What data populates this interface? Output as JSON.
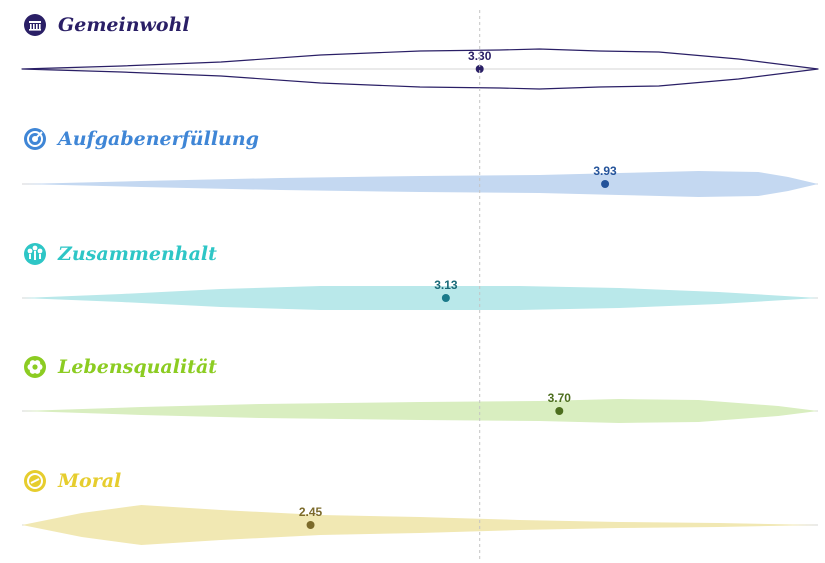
{
  "chart_data": {
    "type": "violin",
    "x_range": [
      1,
      5
    ],
    "reference_x": 3.3,
    "rows": [
      {
        "label": "Gemeinwohl",
        "value": "3.30",
        "x": 3.3,
        "icon": "building-icon",
        "color": "#2a1f66",
        "fill": "none",
        "stroke": "#2a1f66",
        "dot": "#2a1f66",
        "text": "#2a1f66",
        "density": [
          [
            1.0,
            0
          ],
          [
            1.5,
            3
          ],
          [
            2.0,
            7
          ],
          [
            2.5,
            14
          ],
          [
            3.0,
            18
          ],
          [
            3.4,
            19
          ],
          [
            3.6,
            20
          ],
          [
            3.9,
            18
          ],
          [
            4.2,
            17
          ],
          [
            4.6,
            10
          ],
          [
            5.0,
            0
          ]
        ]
      },
      {
        "label": "Aufgabenerfüllung",
        "value": "3.93",
        "x": 3.93,
        "icon": "target-icon",
        "color": "#3f86d6",
        "fill": "#c4d8f1",
        "stroke": "none",
        "dot": "#24539a",
        "text": "#24539a",
        "density": [
          [
            1.0,
            0
          ],
          [
            1.6,
            3
          ],
          [
            2.3,
            6
          ],
          [
            3.0,
            8
          ],
          [
            3.6,
            9
          ],
          [
            4.0,
            11
          ],
          [
            4.4,
            13
          ],
          [
            4.7,
            12
          ],
          [
            4.85,
            7
          ],
          [
            5.0,
            0
          ]
        ]
      },
      {
        "label": "Zusammenhalt",
        "value": "3.13",
        "x": 3.13,
        "icon": "people-icon",
        "color": "#2ec6c6",
        "fill": "#b9e8ea",
        "stroke": "none",
        "dot": "#1a7a8a",
        "text": "#1a6a78",
        "density": [
          [
            1.0,
            0
          ],
          [
            1.5,
            4
          ],
          [
            2.0,
            9
          ],
          [
            2.5,
            12
          ],
          [
            3.0,
            12
          ],
          [
            3.5,
            12
          ],
          [
            4.0,
            10
          ],
          [
            4.5,
            6
          ],
          [
            5.0,
            0
          ]
        ]
      },
      {
        "label": "Lebensqualität",
        "value": "3.70",
        "x": 3.7,
        "icon": "flower-icon",
        "color": "#8ccc22",
        "fill": "#d9eec0",
        "stroke": "none",
        "dot": "#4d6e1f",
        "text": "#4d6e1f",
        "density": [
          [
            1.0,
            0
          ],
          [
            1.6,
            4
          ],
          [
            2.2,
            7
          ],
          [
            3.0,
            9
          ],
          [
            3.6,
            10
          ],
          [
            4.0,
            12
          ],
          [
            4.4,
            11
          ],
          [
            4.8,
            5
          ],
          [
            5.0,
            0
          ]
        ]
      },
      {
        "label": "Moral",
        "value": "2.45",
        "x": 2.45,
        "icon": "moral-icon",
        "color": "#e6cd2e",
        "fill": "#f1e8b3",
        "stroke": "none",
        "dot": "#7b6a2a",
        "text": "#7b6a2a",
        "density": [
          [
            1.0,
            0
          ],
          [
            1.3,
            12
          ],
          [
            1.6,
            20
          ],
          [
            2.0,
            15
          ],
          [
            2.5,
            10
          ],
          [
            3.0,
            8
          ],
          [
            3.5,
            5
          ],
          [
            4.0,
            3
          ],
          [
            4.5,
            2
          ],
          [
            5.0,
            0
          ]
        ]
      }
    ]
  }
}
